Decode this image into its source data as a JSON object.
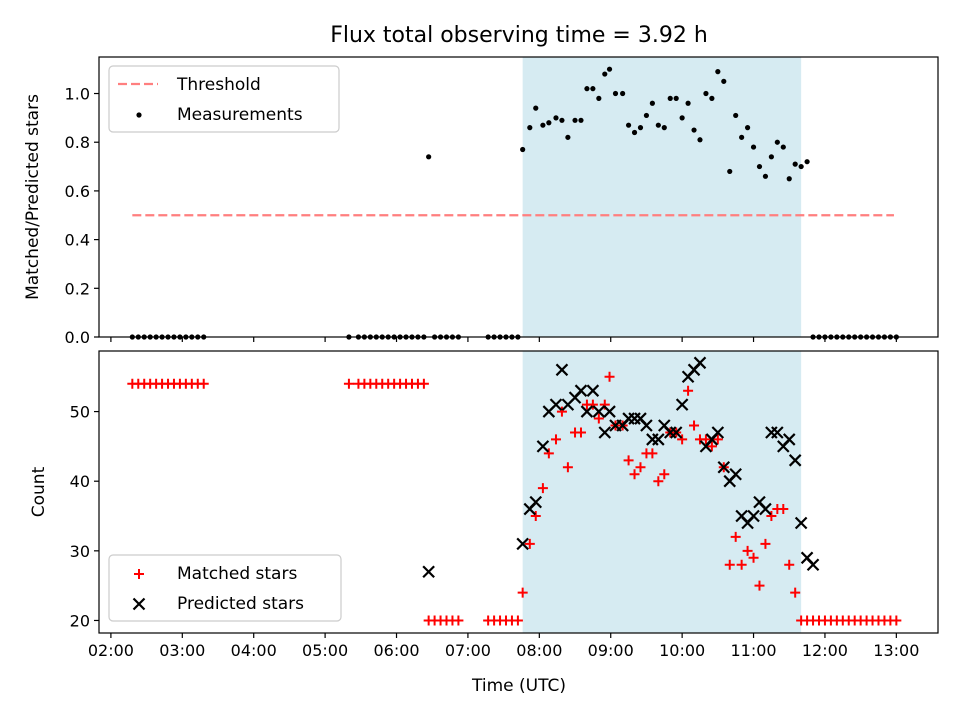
{
  "title": "Flux total observing time = 3.92 h",
  "colors": {
    "threshold": "#ff7f7f",
    "measurement": "#000000",
    "matched": "#ff0000",
    "predicted": "#000000",
    "shade": "#add8e6"
  },
  "chart_data": [
    {
      "type": "scatter",
      "ylabel": "Matched/Predicted stars",
      "ylim": [
        0,
        1.15
      ],
      "yticks": [
        0.0,
        0.2,
        0.4,
        0.6,
        0.8,
        1.0
      ],
      "ytick_labels": [
        "0.0",
        "0.2",
        "0.4",
        "0.6",
        "0.8",
        "1.0"
      ],
      "legend_position": "upper-left",
      "shaded_span": [
        "07:46",
        "11:40"
      ],
      "threshold": {
        "name": "Threshold",
        "style": "dashed",
        "y": 0.5,
        "x_start": "02:18",
        "x_end": "12:58"
      },
      "series": [
        {
          "name": "Measurements",
          "marker": "dot",
          "points": [
            [
              "02:18",
              0
            ],
            [
              "02:23",
              0
            ],
            [
              "02:28",
              0
            ],
            [
              "02:33",
              0
            ],
            [
              "02:38",
              0
            ],
            [
              "02:43",
              0
            ],
            [
              "02:48",
              0
            ],
            [
              "02:53",
              0
            ],
            [
              "02:58",
              0
            ],
            [
              "03:03",
              0
            ],
            [
              "03:08",
              0
            ],
            [
              "03:13",
              0
            ],
            [
              "03:18",
              0
            ],
            [
              "05:20",
              0
            ],
            [
              "05:28",
              0
            ],
            [
              "05:33",
              0
            ],
            [
              "05:38",
              0
            ],
            [
              "05:43",
              0
            ],
            [
              "05:48",
              0
            ],
            [
              "05:53",
              0
            ],
            [
              "05:58",
              0
            ],
            [
              "06:03",
              0
            ],
            [
              "06:08",
              0
            ],
            [
              "06:13",
              0
            ],
            [
              "06:18",
              0
            ],
            [
              "06:23",
              0
            ],
            [
              "06:27",
              0.74
            ],
            [
              "06:32",
              0
            ],
            [
              "06:37",
              0
            ],
            [
              "06:42",
              0
            ],
            [
              "06:47",
              0
            ],
            [
              "06:52",
              0
            ],
            [
              "07:17",
              0
            ],
            [
              "07:22",
              0
            ],
            [
              "07:27",
              0
            ],
            [
              "07:32",
              0
            ],
            [
              "07:37",
              0
            ],
            [
              "07:42",
              0
            ],
            [
              "07:46",
              0.77
            ],
            [
              "07:52",
              0.86
            ],
            [
              "07:57",
              0.94
            ],
            [
              "08:03",
              0.87
            ],
            [
              "08:08",
              0.88
            ],
            [
              "08:14",
              0.9
            ],
            [
              "08:19",
              0.89
            ],
            [
              "08:24",
              0.82
            ],
            [
              "08:30",
              0.89
            ],
            [
              "08:35",
              0.89
            ],
            [
              "08:40",
              1.02
            ],
            [
              "08:45",
              1.02
            ],
            [
              "08:50",
              0.98
            ],
            [
              "08:55",
              1.08
            ],
            [
              "08:59",
              1.1
            ],
            [
              "09:04",
              1.0
            ],
            [
              "09:10",
              1.0
            ],
            [
              "09:15",
              0.87
            ],
            [
              "09:20",
              0.84
            ],
            [
              "09:25",
              0.86
            ],
            [
              "09:30",
              0.91
            ],
            [
              "09:35",
              0.96
            ],
            [
              "09:40",
              0.87
            ],
            [
              "09:45",
              0.86
            ],
            [
              "09:50",
              0.98
            ],
            [
              "09:55",
              0.98
            ],
            [
              "10:00",
              0.9
            ],
            [
              "10:05",
              0.96
            ],
            [
              "10:10",
              0.85
            ],
            [
              "10:15",
              0.81
            ],
            [
              "10:20",
              1.0
            ],
            [
              "10:25",
              0.98
            ],
            [
              "10:30",
              1.09
            ],
            [
              "10:35",
              1.05
            ],
            [
              "10:40",
              0.68
            ],
            [
              "10:45",
              0.91
            ],
            [
              "10:50",
              0.82
            ],
            [
              "10:55",
              0.86
            ],
            [
              "11:00",
              0.78
            ],
            [
              "11:05",
              0.7
            ],
            [
              "11:10",
              0.66
            ],
            [
              "11:15",
              0.74
            ],
            [
              "11:20",
              0.8
            ],
            [
              "11:25",
              0.78
            ],
            [
              "11:30",
              0.65
            ],
            [
              "11:35",
              0.71
            ],
            [
              "11:40",
              0.7
            ],
            [
              "11:45",
              0.72
            ],
            [
              "11:50",
              0
            ],
            [
              "11:55",
              0
            ],
            [
              "12:00",
              0
            ],
            [
              "12:05",
              0
            ],
            [
              "12:10",
              0
            ],
            [
              "12:15",
              0
            ],
            [
              "12:20",
              0
            ],
            [
              "12:25",
              0
            ],
            [
              "12:30",
              0
            ],
            [
              "12:35",
              0
            ],
            [
              "12:40",
              0
            ],
            [
              "12:45",
              0
            ],
            [
              "12:50",
              0
            ],
            [
              "12:55",
              0
            ],
            [
              "13:00",
              0
            ]
          ]
        }
      ]
    },
    {
      "type": "scatter",
      "xlabel": "Time (UTC)",
      "ylabel": "Count",
      "ylim": [
        18.2,
        58.7
      ],
      "yticks": [
        20,
        30,
        40,
        50
      ],
      "ytick_labels": [
        "20",
        "30",
        "40",
        "50"
      ],
      "xlim": [
        "01:50",
        "13:35"
      ],
      "xticks": [
        "02:00",
        "03:00",
        "04:00",
        "05:00",
        "06:00",
        "07:00",
        "08:00",
        "09:00",
        "10:00",
        "11:00",
        "12:00",
        "13:00"
      ],
      "legend_position": "lower-left",
      "shaded_span": [
        "07:46",
        "11:40"
      ],
      "series": [
        {
          "name": "Matched stars",
          "marker": "plus",
          "points": [
            [
              "02:18",
              54
            ],
            [
              "02:23",
              54
            ],
            [
              "02:28",
              54
            ],
            [
              "02:33",
              54
            ],
            [
              "02:38",
              54
            ],
            [
              "02:43",
              54
            ],
            [
              "02:48",
              54
            ],
            [
              "02:53",
              54
            ],
            [
              "02:58",
              54
            ],
            [
              "03:03",
              54
            ],
            [
              "03:08",
              54
            ],
            [
              "03:13",
              54
            ],
            [
              "03:18",
              54
            ],
            [
              "05:20",
              54
            ],
            [
              "05:28",
              54
            ],
            [
              "05:33",
              54
            ],
            [
              "05:38",
              54
            ],
            [
              "05:43",
              54
            ],
            [
              "05:48",
              54
            ],
            [
              "05:53",
              54
            ],
            [
              "05:58",
              54
            ],
            [
              "06:03",
              54
            ],
            [
              "06:08",
              54
            ],
            [
              "06:13",
              54
            ],
            [
              "06:18",
              54
            ],
            [
              "06:23",
              54
            ],
            [
              "06:27",
              20
            ],
            [
              "06:32",
              20
            ],
            [
              "06:37",
              20
            ],
            [
              "06:42",
              20
            ],
            [
              "06:47",
              20
            ],
            [
              "06:52",
              20
            ],
            [
              "07:17",
              20
            ],
            [
              "07:22",
              20
            ],
            [
              "07:27",
              20
            ],
            [
              "07:32",
              20
            ],
            [
              "07:37",
              20
            ],
            [
              "07:42",
              20
            ],
            [
              "07:46",
              24
            ],
            [
              "07:52",
              31
            ],
            [
              "07:57",
              35
            ],
            [
              "08:03",
              39
            ],
            [
              "08:08",
              44
            ],
            [
              "08:14",
              46
            ],
            [
              "08:19",
              50
            ],
            [
              "08:24",
              42
            ],
            [
              "08:30",
              47
            ],
            [
              "08:35",
              47
            ],
            [
              "08:40",
              51
            ],
            [
              "08:45",
              51
            ],
            [
              "08:50",
              49
            ],
            [
              "08:55",
              51
            ],
            [
              "08:59",
              55
            ],
            [
              "09:04",
              48
            ],
            [
              "09:10",
              48
            ],
            [
              "09:15",
              43
            ],
            [
              "09:20",
              41
            ],
            [
              "09:25",
              42
            ],
            [
              "09:30",
              44
            ],
            [
              "09:35",
              44
            ],
            [
              "09:40",
              40
            ],
            [
              "09:45",
              41
            ],
            [
              "09:50",
              47
            ],
            [
              "09:55",
              47
            ],
            [
              "10:00",
              46
            ],
            [
              "10:05",
              53
            ],
            [
              "10:10",
              48
            ],
            [
              "10:15",
              46
            ],
            [
              "10:20",
              46
            ],
            [
              "10:25",
              45
            ],
            [
              "10:30",
              46
            ],
            [
              "10:35",
              42
            ],
            [
              "10:40",
              28
            ],
            [
              "10:45",
              32
            ],
            [
              "10:50",
              28
            ],
            [
              "10:55",
              30
            ],
            [
              "11:00",
              29
            ],
            [
              "11:05",
              25
            ],
            [
              "11:10",
              31
            ],
            [
              "11:15",
              35
            ],
            [
              "11:20",
              36
            ],
            [
              "11:25",
              36
            ],
            [
              "11:30",
              28
            ],
            [
              "11:35",
              24
            ],
            [
              "11:40",
              20
            ],
            [
              "11:45",
              20
            ],
            [
              "11:50",
              20
            ],
            [
              "11:55",
              20
            ],
            [
              "12:00",
              20
            ],
            [
              "12:05",
              20
            ],
            [
              "12:10",
              20
            ],
            [
              "12:15",
              20
            ],
            [
              "12:20",
              20
            ],
            [
              "12:25",
              20
            ],
            [
              "12:30",
              20
            ],
            [
              "12:35",
              20
            ],
            [
              "12:40",
              20
            ],
            [
              "12:45",
              20
            ],
            [
              "12:50",
              20
            ],
            [
              "12:55",
              20
            ],
            [
              "13:00",
              20
            ]
          ]
        },
        {
          "name": "Predicted stars",
          "marker": "x",
          "points": [
            [
              "06:27",
              27
            ],
            [
              "07:46",
              31
            ],
            [
              "07:52",
              36
            ],
            [
              "07:57",
              37
            ],
            [
              "08:03",
              45
            ],
            [
              "08:08",
              50
            ],
            [
              "08:14",
              51
            ],
            [
              "08:19",
              56
            ],
            [
              "08:24",
              51
            ],
            [
              "08:30",
              52
            ],
            [
              "08:35",
              53
            ],
            [
              "08:40",
              50
            ],
            [
              "08:45",
              53
            ],
            [
              "08:50",
              50
            ],
            [
              "08:55",
              47
            ],
            [
              "08:59",
              50
            ],
            [
              "09:04",
              48
            ],
            [
              "09:10",
              48
            ],
            [
              "09:15",
              49
            ],
            [
              "09:20",
              49
            ],
            [
              "09:25",
              49
            ],
            [
              "09:30",
              48
            ],
            [
              "09:35",
              46
            ],
            [
              "09:40",
              46
            ],
            [
              "09:45",
              48
            ],
            [
              "09:50",
              47
            ],
            [
              "09:55",
              47
            ],
            [
              "10:00",
              51
            ],
            [
              "10:05",
              55
            ],
            [
              "10:10",
              56
            ],
            [
              "10:15",
              57
            ],
            [
              "10:20",
              45
            ],
            [
              "10:25",
              46
            ],
            [
              "10:30",
              47
            ],
            [
              "10:35",
              42
            ],
            [
              "10:40",
              40
            ],
            [
              "10:45",
              41
            ],
            [
              "10:50",
              35
            ],
            [
              "10:55",
              34
            ],
            [
              "11:00",
              35
            ],
            [
              "11:05",
              37
            ],
            [
              "11:10",
              36
            ],
            [
              "11:15",
              47
            ],
            [
              "11:20",
              47
            ],
            [
              "11:25",
              45
            ],
            [
              "11:30",
              46
            ],
            [
              "11:35",
              43
            ],
            [
              "11:40",
              34
            ],
            [
              "11:45",
              29
            ],
            [
              "11:50",
              28
            ]
          ]
        }
      ]
    }
  ]
}
